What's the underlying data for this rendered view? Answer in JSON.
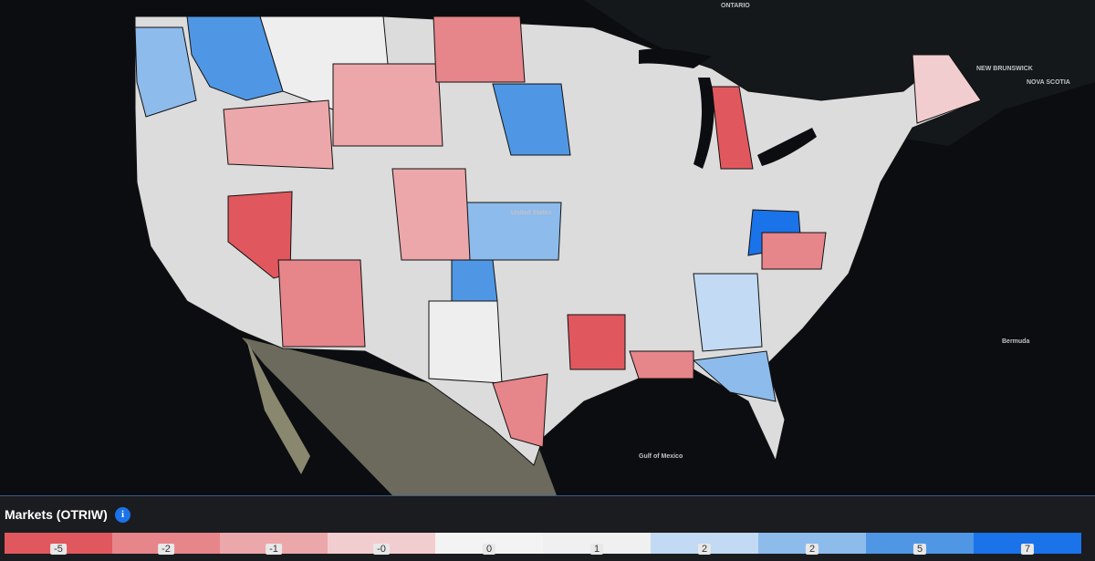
{
  "title": "Markets (OTRIW)",
  "info_icon": "i",
  "map_labels": [
    "ONTARIO",
    "NEW BRUNSWICK",
    "NOVA SCOTIA",
    "Bermuda",
    "Gulf of Mexico",
    "United States"
  ],
  "legend": {
    "items": [
      {
        "label": "-5",
        "color": "#e0585e"
      },
      {
        "label": "-2",
        "color": "#e6858a"
      },
      {
        "label": "-1",
        "color": "#eca7aa"
      },
      {
        "label": "-0",
        "color": "#f2cdd0"
      },
      {
        "label": "0",
        "color": "#f3f3f3"
      },
      {
        "label": "1",
        "color": "#f0f0f0"
      },
      {
        "label": "2",
        "color": "#c2daf3"
      },
      {
        "label": "2",
        "color": "#8dbbec"
      },
      {
        "label": "5",
        "color": "#4f97e4"
      },
      {
        "label": "7",
        "color": "#1a73e8"
      }
    ]
  }
}
